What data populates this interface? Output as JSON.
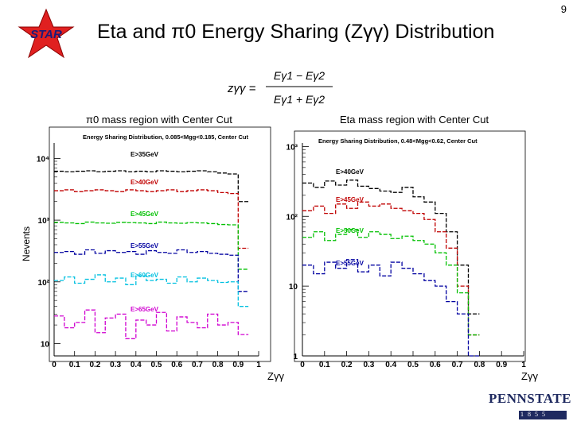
{
  "page_number": "9",
  "logo_text": "STAR",
  "title": "Eta and π0 Energy Sharing (Zγγ) Distribution",
  "formula": {
    "lhs": "zγγ =",
    "numerator": "Eγ1 − Eγ2",
    "denominator": "Eγ1 + Eγ2"
  },
  "region_captions": {
    "left": "π0 mass region with Center Cut",
    "right": "Eta mass region with Center Cut"
  },
  "y_axis_title": "Nevents",
  "x_axis_titles": {
    "left": "Zγγ",
    "right": "Zγγ"
  },
  "institution_logo": {
    "name": "PENNSTATE",
    "year": "1855"
  },
  "chart_data": [
    {
      "type": "line",
      "title": "Energy Sharing Distribution, 0.085<Mgg<0.185, Center Cut",
      "xlabel": "Zγγ",
      "ylabel": "Nevents",
      "log_y": true,
      "xlim": [
        0,
        1.0
      ],
      "x_ticks": [
        "0",
        "0.1",
        "0.2",
        "0.3",
        "0.4",
        "0.5",
        "0.6",
        "0.7",
        "0.8",
        "0.9",
        "1"
      ],
      "y_tick_labels": [
        "10",
        "10²",
        "10³",
        "10⁴"
      ],
      "x": [
        0.025,
        0.075,
        0.125,
        0.175,
        0.225,
        0.275,
        0.325,
        0.375,
        0.425,
        0.475,
        0.525,
        0.575,
        0.625,
        0.675,
        0.725,
        0.775,
        0.825,
        0.875,
        0.925,
        0.975
      ],
      "series": [
        {
          "name": "E>35GeV",
          "color": "#000000",
          "values": [
            6200,
            6100,
            6200,
            6300,
            6100,
            6200,
            6300,
            6100,
            6200,
            6100,
            6300,
            6200,
            6100,
            6200,
            6300,
            6100,
            5800,
            5600,
            2000,
            null
          ]
        },
        {
          "name": "E>40GeV",
          "color": "#c00000",
          "values": [
            3000,
            3100,
            2900,
            3000,
            3100,
            3000,
            2900,
            3100,
            3000,
            2900,
            3000,
            3100,
            2900,
            3000,
            3100,
            3000,
            2800,
            2700,
            350,
            null
          ]
        },
        {
          "name": "E>45GeV",
          "color": "#00c000",
          "values": [
            920,
            900,
            880,
            930,
            900,
            890,
            920,
            910,
            900,
            880,
            930,
            900,
            890,
            910,
            900,
            880,
            850,
            840,
            160,
            null
          ]
        },
        {
          "name": "E>55GeV",
          "color": "#0000a0",
          "values": [
            300,
            310,
            280,
            330,
            290,
            320,
            300,
            310,
            280,
            320,
            300,
            290,
            330,
            300,
            310,
            290,
            280,
            270,
            70,
            null
          ]
        },
        {
          "name": "E>60GeV",
          "color": "#00c0e0",
          "values": [
            105,
            120,
            95,
            110,
            130,
            100,
            115,
            90,
            125,
            105,
            110,
            95,
            120,
            100,
            115,
            105,
            98,
            100,
            40,
            null
          ]
        },
        {
          "name": "E>65GeV",
          "color": "#d000d0",
          "values": [
            28,
            18,
            22,
            35,
            15,
            26,
            30,
            12,
            24,
            20,
            32,
            16,
            27,
            22,
            18,
            30,
            20,
            22,
            14,
            null
          ]
        }
      ]
    },
    {
      "type": "line",
      "title": "Energy Sharing Distribution, 0.48<Mgg<0.62, Center Cut",
      "xlabel": "Zγγ",
      "ylabel": "Nevents",
      "log_y": true,
      "xlim": [
        0,
        1.0
      ],
      "x_ticks": [
        "0",
        "0.1",
        "0.2",
        "0.3",
        "0.4",
        "0.5",
        "0.6",
        "0.7",
        "0.8",
        "0.9",
        "1"
      ],
      "y_tick_labels": [
        "1",
        "10",
        "10²",
        "10³"
      ],
      "x": [
        0.025,
        0.075,
        0.125,
        0.175,
        0.225,
        0.275,
        0.325,
        0.375,
        0.425,
        0.475,
        0.525,
        0.575,
        0.625,
        0.675,
        0.725,
        0.775
      ],
      "series": [
        {
          "name": "E>40GeV",
          "color": "#000000",
          "values": [
            300,
            260,
            320,
            280,
            330,
            270,
            250,
            230,
            220,
            260,
            190,
            160,
            110,
            60,
            20,
            4
          ]
        },
        {
          "name": "E>45GeV",
          "color": "#c00000",
          "values": [
            120,
            140,
            110,
            150,
            130,
            160,
            140,
            150,
            130,
            120,
            110,
            90,
            60,
            35,
            10,
            2
          ]
        },
        {
          "name": "E>50GeV",
          "color": "#00c000",
          "values": [
            50,
            60,
            45,
            55,
            65,
            50,
            60,
            55,
            48,
            52,
            45,
            40,
            30,
            20,
            8,
            2
          ]
        },
        {
          "name": "E>55GeV",
          "color": "#0000a0",
          "values": [
            20,
            15,
            22,
            18,
            24,
            16,
            20,
            14,
            22,
            18,
            15,
            12,
            10,
            6,
            4,
            1
          ]
        }
      ]
    }
  ]
}
